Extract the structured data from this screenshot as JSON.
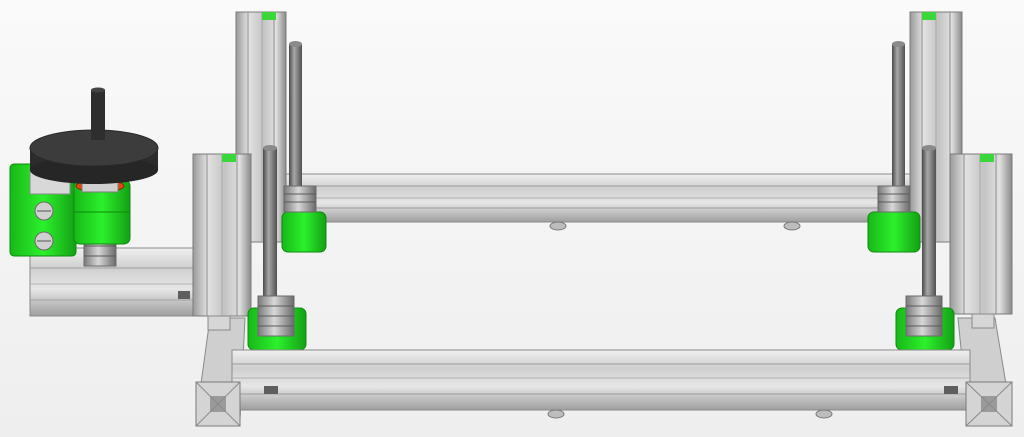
{
  "scene": {
    "subject": "3d-printer-frame-cad-render",
    "colors": {
      "background": "#f4f4f4",
      "extrusion_light": "#d9d9d9",
      "extrusion_mid": "#bdbdbd",
      "extrusion_dark": "#8f8f8f",
      "bracket_green": "#22e022",
      "bracket_green_dark": "#14a814",
      "rod": "#6f6f6f",
      "rod_highlight": "#a0a0a0",
      "handwheel": "#333333",
      "handwheel_top": "#3c3c3c",
      "bearing_orange": "#e04a10"
    },
    "components": {
      "z_rod_count": 4,
      "lead_screw_bracket_count": 4,
      "corner_upright_count": 4,
      "handwheel_count": 1
    }
  }
}
